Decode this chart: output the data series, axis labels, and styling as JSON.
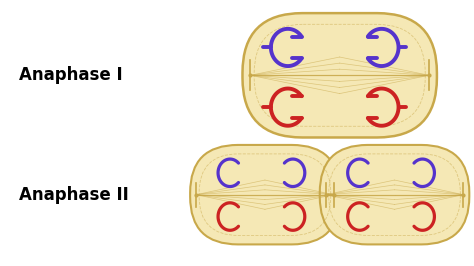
{
  "background_color": "#ffffff",
  "cell_fill": "#f5e8b5",
  "cell_edge": "#c8a84a",
  "spindle_color": "#c8a84a",
  "label_anaphase1": "Anaphase I",
  "label_anaphase2": "Anaphase II",
  "label_fontsize": 12,
  "label_fontweight": "bold",
  "purple": "#5533cc",
  "red": "#cc2222"
}
